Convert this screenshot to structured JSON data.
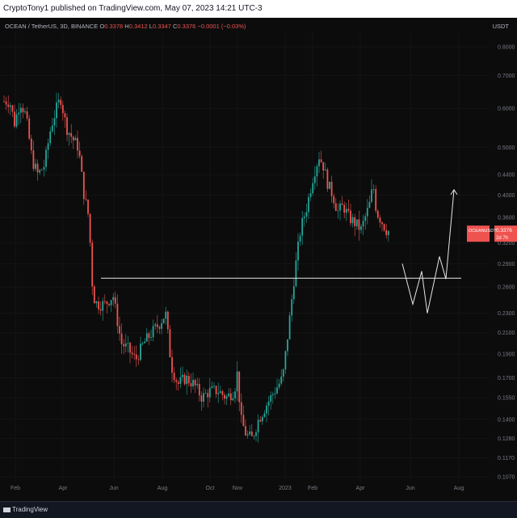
{
  "header": {
    "publisher_line": "CryptoTony1 published on TradingView.com, May 07, 2023 14:21 UTC-3"
  },
  "legend": {
    "symbol": "OCEAN / TetherUS, 3D, BINANCE",
    "o_label": "O",
    "o_value": "0.3378",
    "h_label": "H",
    "h_value": "0.3412",
    "l_label": "L",
    "l_value": "0.3347",
    "c_label": "C",
    "c_value": "0.3376",
    "change": "−0.0001 (−0.03%)"
  },
  "currency": "USDT",
  "footer": {
    "brand": "TradingView"
  },
  "colors": {
    "background": "#0c0c0c",
    "up": "#26a69a",
    "down": "#ef5350",
    "drawing": "#e6e6e6",
    "axis_text": "#787b86"
  },
  "chart_data": {
    "type": "candlestick",
    "symbol": "OCEANUSDT",
    "interval": "3D",
    "y_scale": "log",
    "y_ticks": [
      "0.8000",
      "0.7000",
      "0.6000",
      "0.5000",
      "0.4400",
      "0.4000",
      "0.3600",
      "0.3200",
      "0.2900",
      "0.2600",
      "0.2300",
      "0.2100",
      "0.1900",
      "0.1700",
      "0.1550",
      "0.1400",
      "0.1280",
      "0.1170",
      "0.1070"
    ],
    "y_tick_values": [
      0.8,
      0.7,
      0.6,
      0.5,
      0.44,
      0.4,
      0.36,
      0.32,
      0.29,
      0.26,
      0.23,
      0.21,
      0.19,
      0.17,
      0.155,
      0.14,
      0.128,
      0.117,
      0.107
    ],
    "x_ticks": [
      "Feb",
      "Apr",
      "Jun",
      "Aug",
      "Oct",
      "Nov",
      "2023",
      "Feb",
      "Apr",
      "Jun",
      "Aug"
    ],
    "last_price": {
      "label": "OCEANUSDT",
      "value": "0.3376",
      "countdown": "2d 7h"
    },
    "support_level": 0.271,
    "projection_path": [
      0.29,
      0.24,
      0.28,
      0.23,
      0.3,
      0.27,
      0.41
    ]
  }
}
